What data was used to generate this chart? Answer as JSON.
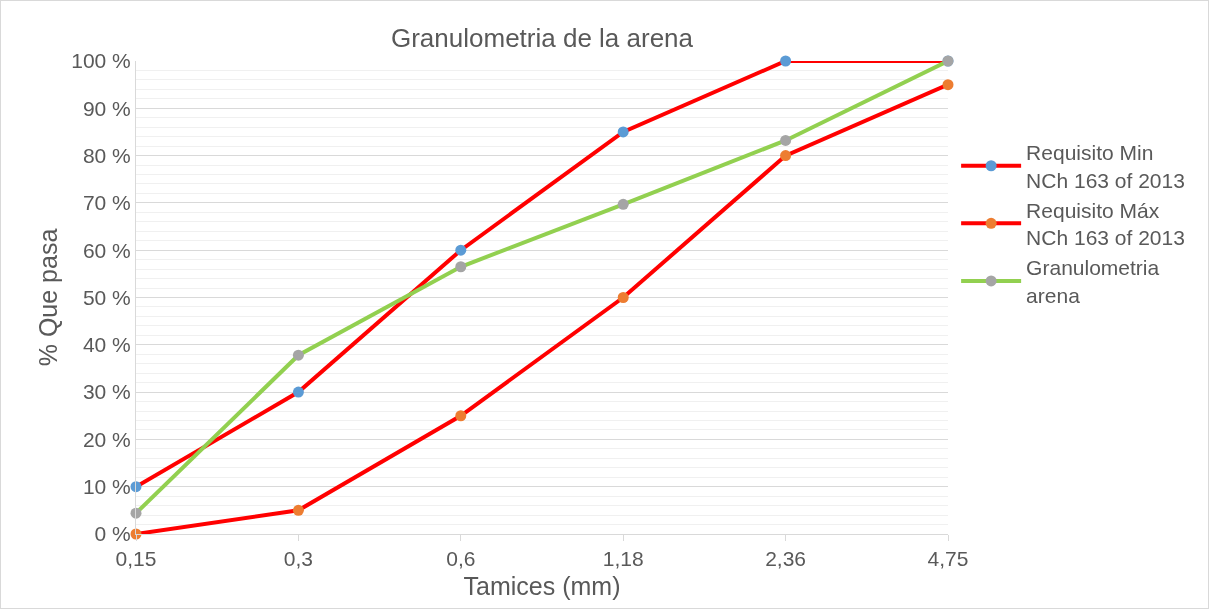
{
  "chart_data": {
    "type": "line",
    "title": "Granulometria de la arena",
    "xlabel": "Tamices (mm)",
    "ylabel": "% Que pasa",
    "categories": [
      "0,15",
      "0,3",
      "0,6",
      "1,18",
      "2,36",
      "4,75"
    ],
    "series": [
      {
        "name": "Requisito Min NCh 163 of 2013",
        "color": "#ff0000",
        "colors": [
          "#5b9bd5",
          "#5b9bd5",
          "#5b9bd5",
          "#5b9bd5",
          "#5b9bd5",
          "#5b9bd5"
        ],
        "values": [
          10,
          30,
          60,
          85,
          100,
          100
        ]
      },
      {
        "name": "Requisito Máx NCh 163 of 2013",
        "color": "#ff0000",
        "colors": [
          "#ed7d31",
          "#ed7d31",
          "#ed7d31",
          "#ed7d31",
          "#ed7d31",
          "#ed7d31"
        ],
        "values": [
          0,
          5,
          25,
          50,
          80,
          95
        ]
      },
      {
        "name": "Granulometria arena",
        "color": "#92d050",
        "colors": [
          "#a5a5a5",
          "#a5a5a5",
          "#a5a5a5",
          "#a5a5a5",
          "#a5a5a5",
          "#a5a5a5"
        ],
        "values": [
          4.4,
          37.8,
          56.5,
          69.7,
          83.2,
          100
        ]
      }
    ],
    "ylim": [
      0,
      100
    ],
    "yticks": [
      {
        "value": 0,
        "label": "0 %"
      },
      {
        "value": 10,
        "label": "10 %"
      },
      {
        "value": 20,
        "label": "20 %"
      },
      {
        "value": 30,
        "label": "30 %"
      },
      {
        "value": 40,
        "label": "40 %"
      },
      {
        "value": 50,
        "label": "50 %"
      },
      {
        "value": 60,
        "label": "60 %"
      },
      {
        "value": 70,
        "label": "70 %"
      },
      {
        "value": 80,
        "label": "80 %"
      },
      {
        "value": 90,
        "label": "90 %"
      },
      {
        "value": 100,
        "label": "100 %"
      }
    ],
    "grid": "y",
    "legend": "right",
    "marker": "circle",
    "line_style": "solid"
  }
}
